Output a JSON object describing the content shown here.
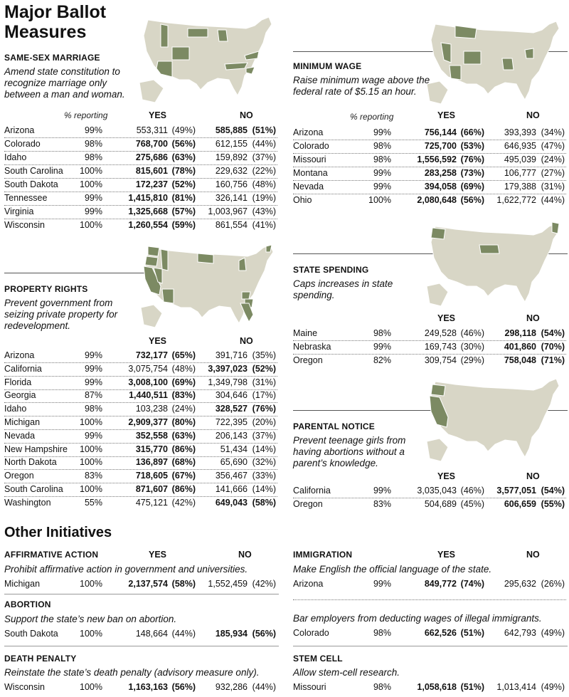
{
  "title": "Major Ballot Measures",
  "other_title": "Other Initiatives",
  "labels": {
    "pct": "% reporting",
    "yes": "YES",
    "no": "NO"
  },
  "colors": {
    "highlight": "#7c8a63",
    "base": "#d8d6c6",
    "rule": "#555555"
  },
  "same_sex": {
    "heading": "SAME-SEX MARRIAGE",
    "desc": "Amend state constitution to recognize marriage only between a man and woman.",
    "rows": [
      {
        "state": "Arizona",
        "pct": "99%",
        "yes": "553,311",
        "yp": "(49%)",
        "no": "585,885",
        "np": "(51%)",
        "win": "no"
      },
      {
        "state": "Colorado",
        "pct": "98%",
        "yes": "768,700",
        "yp": "(56%)",
        "no": "612,155",
        "np": "(44%)",
        "win": "yes"
      },
      {
        "state": "Idaho",
        "pct": "98%",
        "yes": "275,686",
        "yp": "(63%)",
        "no": "159,892",
        "np": "(37%)",
        "win": "yes"
      },
      {
        "state": "South Carolina",
        "pct": "100%",
        "yes": "815,601",
        "yp": "(78%)",
        "no": "229,632",
        "np": "(22%)",
        "win": "yes"
      },
      {
        "state": "South Dakota",
        "pct": "100%",
        "yes": "172,237",
        "yp": "(52%)",
        "no": "160,756",
        "np": "(48%)",
        "win": "yes"
      },
      {
        "state": "Tennessee",
        "pct": "99%",
        "yes": "1,415,810",
        "yp": "(81%)",
        "no": "326,141",
        "np": "(19%)",
        "win": "yes"
      },
      {
        "state": "Virginia",
        "pct": "99%",
        "yes": "1,325,668",
        "yp": "(57%)",
        "no": "1,003,967",
        "np": "(43%)",
        "win": "yes"
      },
      {
        "state": "Wisconsin",
        "pct": "100%",
        "yes": "1,260,554",
        "yp": "(59%)",
        "no": "861,554",
        "np": "(41%)",
        "win": "yes"
      }
    ]
  },
  "property": {
    "heading": "PROPERTY RIGHTS",
    "desc": "Prevent government from seizing private property for redevelopment.",
    "rows": [
      {
        "state": "Arizona",
        "pct": "99%",
        "yes": "732,177",
        "yp": "(65%)",
        "no": "391,716",
        "np": "(35%)",
        "win": "yes"
      },
      {
        "state": "California",
        "pct": "99%",
        "yes": "3,075,754",
        "yp": "(48%)",
        "no": "3,397,023",
        "np": "(52%)",
        "win": "no"
      },
      {
        "state": "Florida",
        "pct": "99%",
        "yes": "3,008,100",
        "yp": "(69%)",
        "no": "1,349,798",
        "np": "(31%)",
        "win": "yes"
      },
      {
        "state": "Georgia",
        "pct": "87%",
        "yes": "1,440,511",
        "yp": "(83%)",
        "no": "304,646",
        "np": "(17%)",
        "win": "yes"
      },
      {
        "state": "Idaho",
        "pct": "98%",
        "yes": "103,238",
        "yp": "(24%)",
        "no": "328,527",
        "np": "(76%)",
        "win": "no"
      },
      {
        "state": "Michigan",
        "pct": "100%",
        "yes": "2,909,377",
        "yp": "(80%)",
        "no": "722,395",
        "np": "(20%)",
        "win": "yes"
      },
      {
        "state": "Nevada",
        "pct": "99%",
        "yes": "352,558",
        "yp": "(63%)",
        "no": "206,143",
        "np": "(37%)",
        "win": "yes"
      },
      {
        "state": "New Hampshire",
        "pct": "100%",
        "yes": "315,770",
        "yp": "(86%)",
        "no": "51,434",
        "np": "(14%)",
        "win": "yes"
      },
      {
        "state": "North Dakota",
        "pct": "100%",
        "yes": "136,897",
        "yp": "(68%)",
        "no": "65,690",
        "np": "(32%)",
        "win": "yes"
      },
      {
        "state": "Oregon",
        "pct": "83%",
        "yes": "718,605",
        "yp": "(67%)",
        "no": "356,467",
        "np": "(33%)",
        "win": "yes"
      },
      {
        "state": "South Carolina",
        "pct": "100%",
        "yes": "871,607",
        "yp": "(86%)",
        "no": "141,666",
        "np": "(14%)",
        "win": "yes"
      },
      {
        "state": "Washington",
        "pct": "55%",
        "yes": "475,121",
        "yp": "(42%)",
        "no": "649,043",
        "np": "(58%)",
        "win": "no"
      }
    ]
  },
  "min_wage": {
    "heading": "MINIMUM WAGE",
    "desc": "Raise minimum wage above the federal rate of $5.15 an hour.",
    "rows": [
      {
        "state": "Arizona",
        "pct": "99%",
        "yes": "756,144",
        "yp": "(66%)",
        "no": "393,393",
        "np": "(34%)",
        "win": "yes"
      },
      {
        "state": "Colorado",
        "pct": "98%",
        "yes": "725,700",
        "yp": "(53%)",
        "no": "646,935",
        "np": "(47%)",
        "win": "yes"
      },
      {
        "state": "Missouri",
        "pct": "98%",
        "yes": "1,556,592",
        "yp": "(76%)",
        "no": "495,039",
        "np": "(24%)",
        "win": "yes"
      },
      {
        "state": "Montana",
        "pct": "99%",
        "yes": "283,258",
        "yp": "(73%)",
        "no": "106,777",
        "np": "(27%)",
        "win": "yes"
      },
      {
        "state": "Nevada",
        "pct": "99%",
        "yes": "394,058",
        "yp": "(69%)",
        "no": "179,388",
        "np": "(31%)",
        "win": "yes"
      },
      {
        "state": "Ohio",
        "pct": "100%",
        "yes": "2,080,648",
        "yp": "(56%)",
        "no": "1,622,772",
        "np": "(44%)",
        "win": "yes"
      }
    ]
  },
  "spending": {
    "heading": "STATE SPENDING",
    "desc": "Caps increases in state spending.",
    "rows": [
      {
        "state": "Maine",
        "pct": "98%",
        "yes": "249,528",
        "yp": "(46%)",
        "no": "298,118",
        "np": "(54%)",
        "win": "no"
      },
      {
        "state": "Nebraska",
        "pct": "99%",
        "yes": "169,743",
        "yp": "(30%)",
        "no": "401,860",
        "np": "(70%)",
        "win": "no"
      },
      {
        "state": "Oregon",
        "pct": "82%",
        "yes": "309,754",
        "yp": "(29%)",
        "no": "758,048",
        "np": "(71%)",
        "win": "no"
      }
    ]
  },
  "parental": {
    "heading": "PARENTAL NOTICE",
    "desc": "Prevent teenage girls from having abortions without a parent’s knowledge.",
    "rows": [
      {
        "state": "California",
        "pct": "99%",
        "yes": "3,035,043",
        "yp": "(46%)",
        "no": "3,577,051",
        "np": "(54%)",
        "win": "no"
      },
      {
        "state": "Oregon",
        "pct": "83%",
        "yes": "504,689",
        "yp": "(45%)",
        "no": "606,659",
        "np": "(55%)",
        "win": "no"
      }
    ]
  },
  "affirmative": {
    "heading": "AFFIRMATIVE ACTION",
    "desc": "Prohibit affirmative action in government and universities.",
    "rows": [
      {
        "state": "Michigan",
        "pct": "100%",
        "yes": "2,137,574",
        "yp": "(58%)",
        "no": "1,552,459",
        "np": "(42%)",
        "win": "yes"
      }
    ]
  },
  "abortion": {
    "heading": "ABORTION",
    "desc": "Support the state’s new ban on abortion.",
    "rows": [
      {
        "state": "South Dakota",
        "pct": "100%",
        "yes": "148,664",
        "yp": "(44%)",
        "no": "185,934",
        "np": "(56%)",
        "win": "no"
      }
    ]
  },
  "death": {
    "heading": "DEATH PENALTY",
    "desc": "Reinstate the state’s death penalty (advisory measure only).",
    "rows": [
      {
        "state": "Wisconsin",
        "pct": "100%",
        "yes": "1,163,163",
        "yp": "(56%)",
        "no": "932,286",
        "np": "(44%)",
        "win": "yes"
      }
    ]
  },
  "immigration": {
    "heading": "IMMIGRATION",
    "desc": "Make English the official language of the state.",
    "rows": [
      {
        "state": "Arizona",
        "pct": "99%",
        "yes": "849,772",
        "yp": "(74%)",
        "no": "295,632",
        "np": "(26%)",
        "win": "yes"
      }
    ],
    "desc2": "Bar employers from deducting wages of illegal immigrants.",
    "rows2": [
      {
        "state": "Colorado",
        "pct": "98%",
        "yes": "662,526",
        "yp": "(51%)",
        "no": "642,793",
        "np": "(49%)",
        "win": "yes"
      }
    ]
  },
  "stem": {
    "heading": "STEM CELL",
    "desc": "Allow stem-cell research.",
    "rows": [
      {
        "state": "Missouri",
        "pct": "98%",
        "yes": "1,058,618",
        "yp": "(51%)",
        "no": "1,013,414",
        "np": "(49%)",
        "win": "yes"
      }
    ]
  }
}
